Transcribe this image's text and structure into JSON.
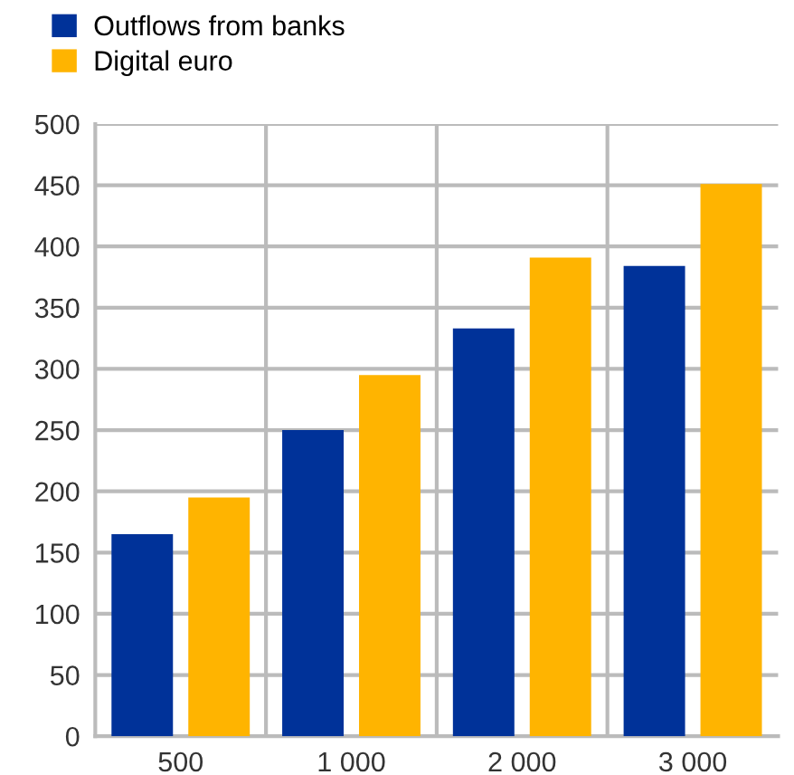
{
  "chart_data": {
    "type": "bar",
    "categories": [
      "500",
      "1 000",
      "2 000",
      "3 000"
    ],
    "series": [
      {
        "name": "Outflows from banks",
        "color": "#003299",
        "values": [
          165,
          250,
          333,
          384
        ]
      },
      {
        "name": "Digital euro",
        "color": "#ffb400",
        "values": [
          195,
          295,
          391,
          451
        ]
      }
    ],
    "ylim": [
      0,
      500
    ],
    "yticks": [
      0,
      50,
      100,
      150,
      200,
      250,
      300,
      350,
      400,
      450,
      500
    ],
    "grid": true,
    "legend": "top left"
  }
}
